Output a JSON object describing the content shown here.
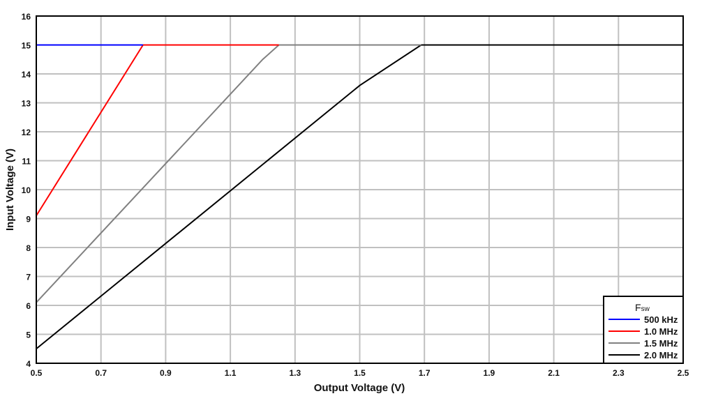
{
  "chart_data": {
    "type": "line",
    "title": "",
    "xlabel": "Output Voltage (V)",
    "ylabel": "Input Voltage (V)",
    "xlim": [
      0.5,
      2.5
    ],
    "ylim": [
      4,
      16
    ],
    "xticks": [
      "0.5",
      "0.7",
      "0.9",
      "1.1",
      "1.3",
      "1.5",
      "1.7",
      "1.9",
      "2.1",
      "2.3",
      "2.5"
    ],
    "yticks": [
      "4",
      "5",
      "6",
      "7",
      "8",
      "9",
      "10",
      "11",
      "12",
      "13",
      "14",
      "15",
      "16"
    ],
    "grid": true,
    "legend": {
      "title": "F",
      "title_sub": "SW",
      "placement": "bottom-right"
    },
    "series": [
      {
        "name": "500 kHz",
        "color": "#0000ff",
        "x": [
          0.5,
          0.83
        ],
        "y": [
          15,
          15
        ]
      },
      {
        "name": "1.0 MHz",
        "color": "#ff0000",
        "x": [
          0.5,
          0.83,
          1.25
        ],
        "y": [
          9.1,
          15,
          15
        ]
      },
      {
        "name": "1.5 MHz",
        "color": "#808080",
        "x": [
          0.5,
          1.2,
          1.25,
          1.69
        ],
        "y": [
          6.1,
          14.5,
          15,
          15
        ]
      },
      {
        "name": "2.0 MHz",
        "color": "#000000",
        "x": [
          0.5,
          1.5,
          1.69,
          2.5
        ],
        "y": [
          4.5,
          13.6,
          15,
          15
        ]
      }
    ]
  }
}
